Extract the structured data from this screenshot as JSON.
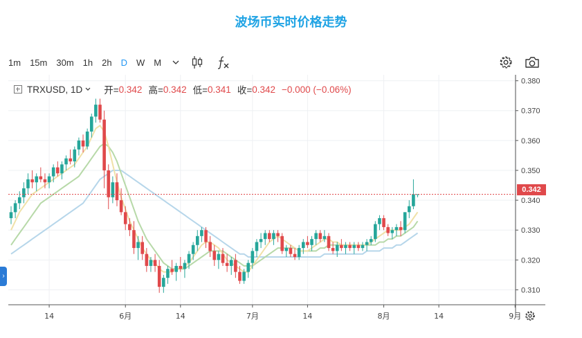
{
  "page_title": "波场币实时价格走势",
  "toolbar": {
    "timeframes": [
      "1m",
      "15m",
      "30m",
      "1h",
      "2h",
      "D",
      "W",
      "M"
    ],
    "active_timeframe": "D",
    "icons": [
      "chevron-down-icon",
      "candlestick-icon",
      "fx-icon",
      "gear-icon",
      "camera-icon",
      "gear-icon"
    ]
  },
  "legend": {
    "symbol": "TRXUSD, 1D",
    "open_label": "开=",
    "open": "0.342",
    "high_label": "高=",
    "high": "0.342",
    "low_label": "低=",
    "low": "0.341",
    "close_label": "收=",
    "close": "0.342",
    "change": "−0.000 (−0.06%)"
  },
  "last_price_label": "0.342",
  "colors": {
    "up": "#26a69a",
    "down": "#e0494b",
    "title": "#1fa3e4",
    "ma_fast": "#f0e1a8",
    "ma_mid": "#b7d9a8",
    "ma_slow": "#b6d6ea"
  },
  "chart_data": {
    "type": "candlestick",
    "symbol": "TRXUSD",
    "interval": "1D",
    "ylim": [
      0.305,
      0.382
    ],
    "y_ticks": [
      "0.380",
      "0.370",
      "0.360",
      "0.350",
      "0.340",
      "0.330",
      "0.320",
      "0.310"
    ],
    "x_ticks": [
      {
        "label": "14",
        "index": 9
      },
      {
        "label": "6月",
        "index": 27
      },
      {
        "label": "14",
        "index": 40
      },
      {
        "label": "7月",
        "index": 57
      },
      {
        "label": "14",
        "index": 70
      },
      {
        "label": "8月",
        "index": 88
      },
      {
        "label": "14",
        "index": 101
      },
      {
        "label": "9月",
        "index": 119
      }
    ],
    "last_price": 0.342,
    "ohlc": [
      [
        0.334,
        0.338,
        0.332,
        0.336
      ],
      [
        0.336,
        0.34,
        0.334,
        0.339
      ],
      [
        0.339,
        0.343,
        0.337,
        0.341
      ],
      [
        0.341,
        0.346,
        0.339,
        0.344
      ],
      [
        0.344,
        0.349,
        0.342,
        0.347
      ],
      [
        0.347,
        0.35,
        0.344,
        0.346
      ],
      [
        0.346,
        0.349,
        0.343,
        0.348
      ],
      [
        0.348,
        0.351,
        0.346,
        0.347
      ],
      [
        0.347,
        0.349,
        0.344,
        0.346
      ],
      [
        0.346,
        0.349,
        0.344,
        0.348
      ],
      [
        0.348,
        0.352,
        0.346,
        0.351
      ],
      [
        0.351,
        0.353,
        0.348,
        0.349
      ],
      [
        0.349,
        0.353,
        0.347,
        0.352
      ],
      [
        0.352,
        0.355,
        0.35,
        0.354
      ],
      [
        0.354,
        0.357,
        0.352,
        0.353
      ],
      [
        0.353,
        0.358,
        0.351,
        0.357
      ],
      [
        0.357,
        0.361,
        0.355,
        0.36
      ],
      [
        0.36,
        0.362,
        0.356,
        0.358
      ],
      [
        0.358,
        0.364,
        0.357,
        0.363
      ],
      [
        0.363,
        0.369,
        0.361,
        0.368
      ],
      [
        0.368,
        0.374,
        0.366,
        0.372
      ],
      [
        0.372,
        0.374,
        0.366,
        0.367
      ],
      [
        0.367,
        0.37,
        0.344,
        0.35
      ],
      [
        0.35,
        0.352,
        0.337,
        0.341
      ],
      [
        0.341,
        0.348,
        0.339,
        0.346
      ],
      [
        0.346,
        0.349,
        0.338,
        0.34
      ],
      [
        0.34,
        0.344,
        0.335,
        0.336
      ],
      [
        0.336,
        0.338,
        0.33,
        0.332
      ],
      [
        0.332,
        0.334,
        0.328,
        0.33
      ],
      [
        0.33,
        0.333,
        0.322,
        0.324
      ],
      [
        0.324,
        0.328,
        0.32,
        0.326
      ],
      [
        0.326,
        0.328,
        0.32,
        0.322
      ],
      [
        0.322,
        0.324,
        0.316,
        0.318
      ],
      [
        0.318,
        0.321,
        0.316,
        0.32
      ],
      [
        0.32,
        0.322,
        0.316,
        0.318
      ],
      [
        0.318,
        0.32,
        0.309,
        0.311
      ],
      [
        0.311,
        0.315,
        0.309,
        0.314
      ],
      [
        0.314,
        0.318,
        0.312,
        0.317
      ],
      [
        0.317,
        0.32,
        0.315,
        0.316
      ],
      [
        0.316,
        0.319,
        0.313,
        0.318
      ],
      [
        0.318,
        0.321,
        0.316,
        0.317
      ],
      [
        0.317,
        0.32,
        0.314,
        0.319
      ],
      [
        0.319,
        0.323,
        0.317,
        0.322
      ],
      [
        0.322,
        0.326,
        0.32,
        0.325
      ],
      [
        0.325,
        0.33,
        0.323,
        0.328
      ],
      [
        0.328,
        0.331,
        0.326,
        0.33
      ],
      [
        0.33,
        0.331,
        0.324,
        0.326
      ],
      [
        0.326,
        0.328,
        0.321,
        0.323
      ],
      [
        0.323,
        0.325,
        0.318,
        0.32
      ],
      [
        0.32,
        0.323,
        0.317,
        0.322
      ],
      [
        0.322,
        0.324,
        0.318,
        0.319
      ],
      [
        0.319,
        0.322,
        0.316,
        0.318
      ],
      [
        0.318,
        0.321,
        0.315,
        0.32
      ],
      [
        0.32,
        0.322,
        0.314,
        0.316
      ],
      [
        0.316,
        0.318,
        0.312,
        0.313
      ],
      [
        0.313,
        0.317,
        0.312,
        0.316
      ],
      [
        0.316,
        0.32,
        0.314,
        0.319
      ],
      [
        0.319,
        0.324,
        0.317,
        0.323
      ],
      [
        0.323,
        0.327,
        0.321,
        0.326
      ],
      [
        0.326,
        0.329,
        0.324,
        0.327
      ],
      [
        0.327,
        0.33,
        0.325,
        0.329
      ],
      [
        0.329,
        0.33,
        0.326,
        0.327
      ],
      [
        0.327,
        0.33,
        0.325,
        0.329
      ],
      [
        0.329,
        0.33,
        0.326,
        0.328
      ],
      [
        0.328,
        0.329,
        0.322,
        0.323
      ],
      [
        0.323,
        0.325,
        0.321,
        0.324
      ],
      [
        0.324,
        0.325,
        0.321,
        0.322
      ],
      [
        0.322,
        0.324,
        0.32,
        0.321
      ],
      [
        0.321,
        0.325,
        0.32,
        0.324
      ],
      [
        0.324,
        0.327,
        0.322,
        0.326
      ],
      [
        0.326,
        0.328,
        0.324,
        0.325
      ],
      [
        0.325,
        0.328,
        0.323,
        0.327
      ],
      [
        0.327,
        0.33,
        0.325,
        0.329
      ],
      [
        0.329,
        0.33,
        0.326,
        0.327
      ],
      [
        0.327,
        0.33,
        0.326,
        0.328
      ],
      [
        0.328,
        0.329,
        0.323,
        0.324
      ],
      [
        0.324,
        0.326,
        0.322,
        0.323
      ],
      [
        0.323,
        0.326,
        0.321,
        0.325
      ],
      [
        0.325,
        0.327,
        0.323,
        0.324
      ],
      [
        0.324,
        0.326,
        0.322,
        0.325
      ],
      [
        0.325,
        0.326,
        0.323,
        0.324
      ],
      [
        0.324,
        0.326,
        0.322,
        0.325
      ],
      [
        0.325,
        0.326,
        0.323,
        0.324
      ],
      [
        0.324,
        0.326,
        0.323,
        0.325
      ],
      [
        0.325,
        0.327,
        0.323,
        0.326
      ],
      [
        0.326,
        0.328,
        0.325,
        0.327
      ],
      [
        0.327,
        0.333,
        0.326,
        0.332
      ],
      [
        0.332,
        0.335,
        0.33,
        0.334
      ],
      [
        0.334,
        0.335,
        0.33,
        0.331
      ],
      [
        0.331,
        0.332,
        0.328,
        0.329
      ],
      [
        0.329,
        0.331,
        0.327,
        0.33
      ],
      [
        0.33,
        0.332,
        0.328,
        0.331
      ],
      [
        0.331,
        0.333,
        0.328,
        0.33
      ],
      [
        0.33,
        0.336,
        0.329,
        0.336
      ],
      [
        0.336,
        0.34,
        0.334,
        0.338
      ],
      [
        0.338,
        0.347,
        0.337,
        0.342
      ],
      [
        0.342,
        0.342,
        0.341,
        0.342
      ]
    ],
    "ma": [
      {
        "name": "ma_fast",
        "color": "#f0e1a8",
        "values": [
          0.33,
          0.333,
          0.336,
          0.338,
          0.34,
          0.342,
          0.343,
          0.344,
          0.345,
          0.346,
          0.347,
          0.348,
          0.349,
          0.35,
          0.351,
          0.352,
          0.354,
          0.356,
          0.358,
          0.361,
          0.364,
          0.365,
          0.363,
          0.358,
          0.352,
          0.346,
          0.341,
          0.337,
          0.333,
          0.33,
          0.327,
          0.324,
          0.322,
          0.32,
          0.319,
          0.317,
          0.316,
          0.316,
          0.316,
          0.317,
          0.317,
          0.318,
          0.319,
          0.321,
          0.323,
          0.325,
          0.326,
          0.326,
          0.325,
          0.324,
          0.322,
          0.32,
          0.319,
          0.318,
          0.317,
          0.316,
          0.316,
          0.318,
          0.32,
          0.322,
          0.324,
          0.326,
          0.327,
          0.328,
          0.327,
          0.326,
          0.325,
          0.324,
          0.323,
          0.323,
          0.323,
          0.324,
          0.325,
          0.326,
          0.327,
          0.327,
          0.326,
          0.326,
          0.325,
          0.325,
          0.325,
          0.325,
          0.325,
          0.325,
          0.325,
          0.326,
          0.327,
          0.328,
          0.329,
          0.33,
          0.33,
          0.33,
          0.33,
          0.331,
          0.332,
          0.334,
          0.336
        ]
      },
      {
        "name": "ma_mid",
        "color": "#b7d9a8",
        "values": [
          0.325,
          0.327,
          0.329,
          0.331,
          0.333,
          0.335,
          0.337,
          0.339,
          0.34,
          0.341,
          0.342,
          0.343,
          0.344,
          0.345,
          0.346,
          0.347,
          0.348,
          0.35,
          0.352,
          0.354,
          0.356,
          0.358,
          0.359,
          0.358,
          0.356,
          0.353,
          0.349,
          0.345,
          0.341,
          0.337,
          0.333,
          0.33,
          0.327,
          0.325,
          0.323,
          0.321,
          0.319,
          0.318,
          0.317,
          0.317,
          0.317,
          0.317,
          0.318,
          0.319,
          0.32,
          0.321,
          0.322,
          0.323,
          0.323,
          0.323,
          0.323,
          0.322,
          0.321,
          0.32,
          0.319,
          0.318,
          0.318,
          0.318,
          0.319,
          0.32,
          0.321,
          0.322,
          0.323,
          0.324,
          0.324,
          0.324,
          0.324,
          0.324,
          0.323,
          0.323,
          0.323,
          0.323,
          0.323,
          0.324,
          0.324,
          0.325,
          0.325,
          0.325,
          0.325,
          0.325,
          0.325,
          0.325,
          0.325,
          0.325,
          0.325,
          0.325,
          0.325,
          0.326,
          0.326,
          0.327,
          0.327,
          0.328,
          0.328,
          0.329,
          0.33,
          0.331,
          0.333
        ]
      },
      {
        "name": "ma_slow",
        "color": "#b6d6ea",
        "values": [
          0.322,
          0.323,
          0.324,
          0.325,
          0.326,
          0.327,
          0.328,
          0.329,
          0.33,
          0.331,
          0.332,
          0.333,
          0.334,
          0.335,
          0.336,
          0.337,
          0.338,
          0.339,
          0.341,
          0.343,
          0.345,
          0.347,
          0.348,
          0.349,
          0.35,
          0.35,
          0.35,
          0.349,
          0.348,
          0.347,
          0.346,
          0.345,
          0.344,
          0.343,
          0.342,
          0.341,
          0.34,
          0.339,
          0.338,
          0.337,
          0.336,
          0.335,
          0.334,
          0.333,
          0.332,
          0.331,
          0.33,
          0.329,
          0.328,
          0.327,
          0.326,
          0.325,
          0.324,
          0.323,
          0.322,
          0.322,
          0.321,
          0.321,
          0.321,
          0.321,
          0.321,
          0.321,
          0.321,
          0.321,
          0.321,
          0.321,
          0.321,
          0.321,
          0.321,
          0.321,
          0.321,
          0.321,
          0.321,
          0.321,
          0.322,
          0.322,
          0.322,
          0.322,
          0.322,
          0.322,
          0.322,
          0.322,
          0.322,
          0.322,
          0.323,
          0.323,
          0.323,
          0.323,
          0.324,
          0.324,
          0.324,
          0.325,
          0.325,
          0.326,
          0.327,
          0.328,
          0.329
        ]
      }
    ],
    "grid": true
  }
}
